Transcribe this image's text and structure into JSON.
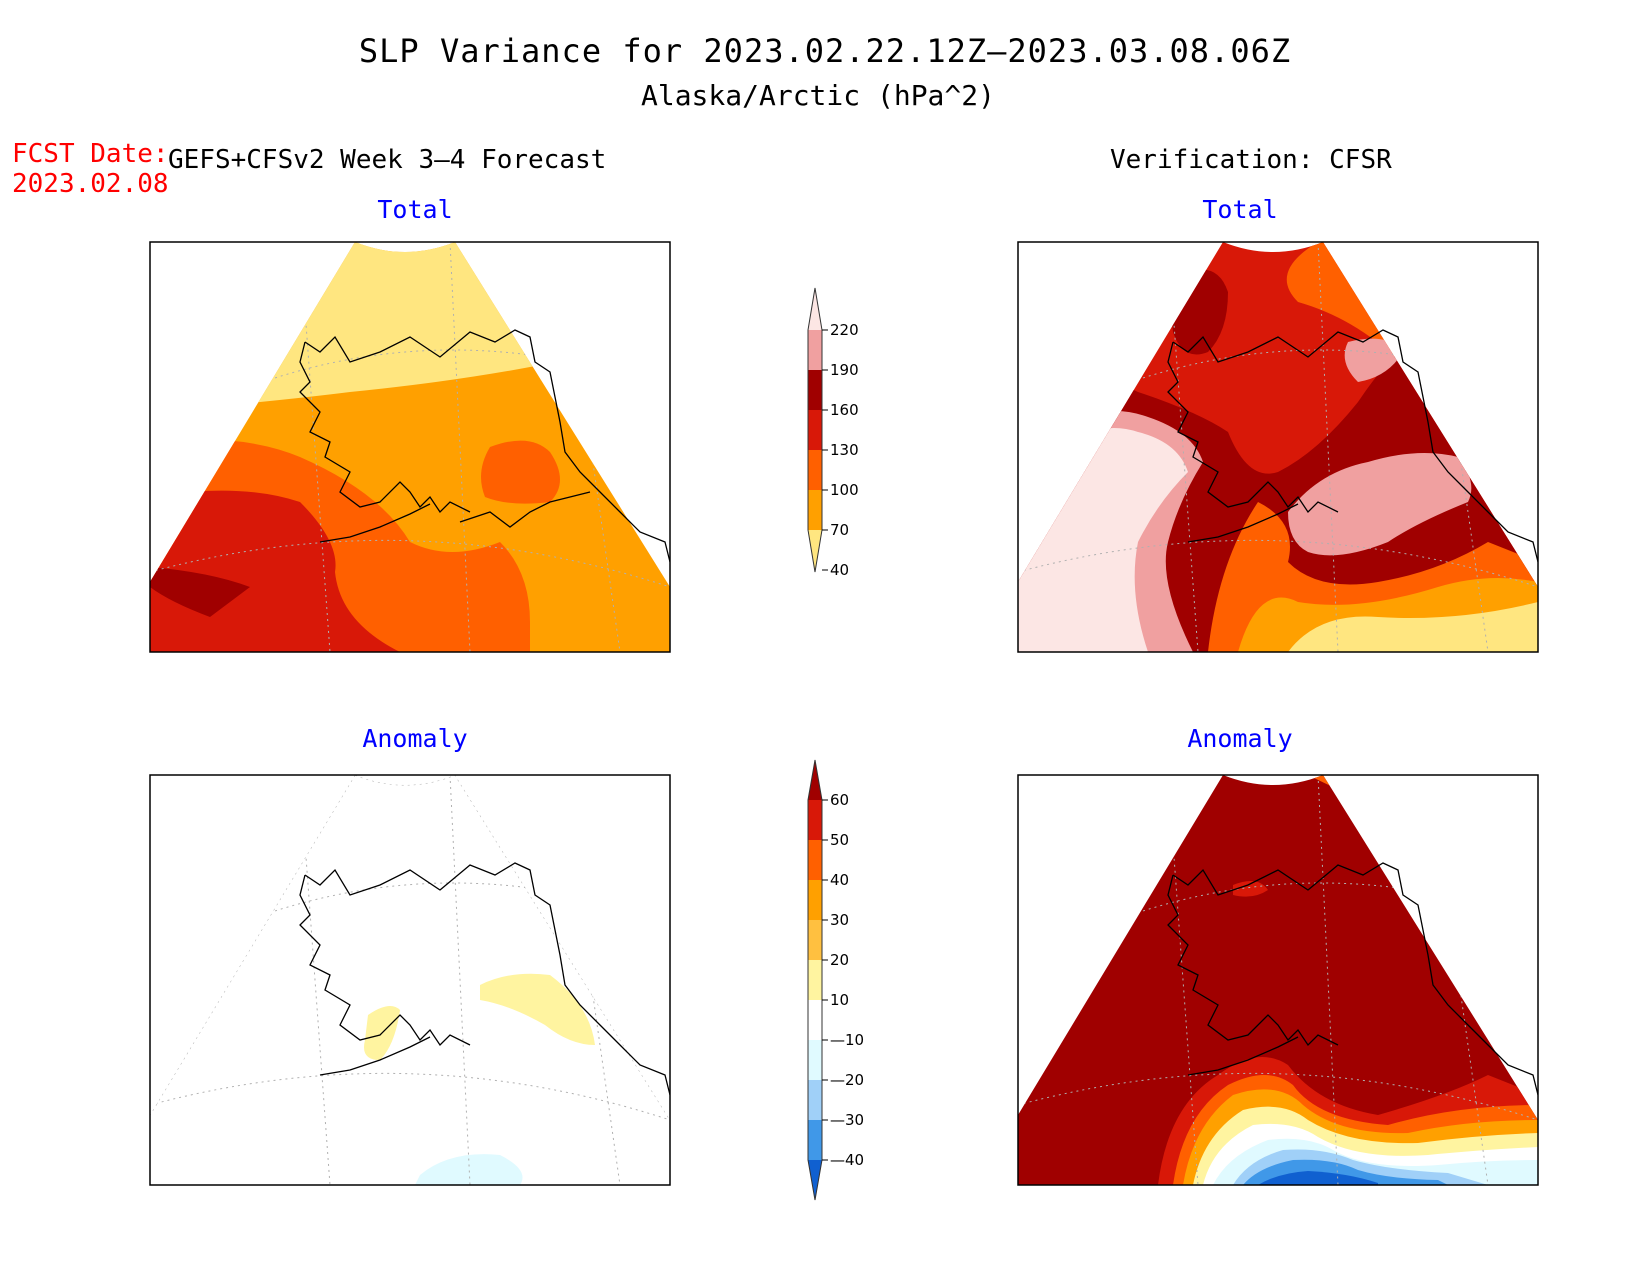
{
  "title": "SLP Variance for 2023.02.22.12Z—2023.03.08.06Z",
  "subtitle": "Alaska/Arctic (hPa^2)",
  "fcst_date_label": "FCST Date:",
  "fcst_date_value": "2023.02.08",
  "forecast_header": "GEFS+CFSv2 Week 3—4 Forecast",
  "verification_header": "Verification: CFSR",
  "chart_data": [
    {
      "type": "heatmap",
      "panel": "forecast-total",
      "title": "Total",
      "levels": [
        40,
        70,
        100,
        130,
        160,
        190,
        220
      ],
      "regions": [
        {
          "area": "Arctic Ocean / north",
          "range": "40-70"
        },
        {
          "area": "Interior Alaska and Canada",
          "range": "70-100"
        },
        {
          "area": "Gulf of Alaska, Yukon",
          "range": "100-130"
        },
        {
          "area": "Bering Sea",
          "range": "130-160"
        },
        {
          "area": "Far SW corner",
          "range": "160-190"
        }
      ]
    },
    {
      "type": "heatmap",
      "panel": "verification-total",
      "title": "Total",
      "levels": [
        40,
        70,
        100,
        130,
        160,
        190,
        220
      ],
      "regions": [
        {
          "area": "Chukotka / Bering Strait",
          "range": ">220"
        },
        {
          "area": "Alaska interior ridge",
          "range": "160-190"
        },
        {
          "area": "Arctic Ocean",
          "range": "130-160"
        },
        {
          "area": "NW Canada",
          "range": "190-220"
        },
        {
          "area": "North Pacific south",
          "range": "40-100"
        }
      ]
    },
    {
      "type": "heatmap",
      "panel": "forecast-anomaly",
      "title": "Anomaly",
      "levels": [
        -40,
        -30,
        -20,
        -10,
        10,
        20,
        30,
        40,
        50,
        60
      ],
      "regions": [
        {
          "area": "Most of domain",
          "range": "-10 to 10"
        },
        {
          "area": "Gulf of Alaska / Yukon",
          "range": "10-20"
        },
        {
          "area": "North Pacific south",
          "range": "-20 to -10"
        }
      ]
    },
    {
      "type": "heatmap",
      "panel": "verification-anomaly",
      "title": "Anomaly",
      "levels": [
        -40,
        -30,
        -20,
        -10,
        10,
        20,
        30,
        40,
        50,
        60
      ],
      "regions": [
        {
          "area": "Most of domain",
          "range": ">60"
        },
        {
          "area": "North Pacific south",
          "range": "<-40"
        },
        {
          "area": "Gulf of Alaska",
          "range": "-10 to 20"
        }
      ]
    }
  ],
  "colorbar_total": {
    "labels": [
      "220",
      "190",
      "160",
      "130",
      "100",
      "70",
      "40"
    ],
    "colors": [
      "#fce6e4",
      "#f0a0a0",
      "#a00000",
      "#d81808",
      "#ff6000",
      "#ffa000",
      "#ffe680"
    ]
  },
  "colorbar_anom": {
    "labels": [
      "60",
      "50",
      "40",
      "30",
      "20",
      "10",
      "—10",
      "—20",
      "—30",
      "—40"
    ],
    "colors": [
      "#a00000",
      "#d81808",
      "#ff6000",
      "#ffa000",
      "#ffc040",
      "#fff4a0",
      "#ffffff",
      "#e0faff",
      "#a0d0f8",
      "#4098e8",
      "#1060d0"
    ]
  }
}
